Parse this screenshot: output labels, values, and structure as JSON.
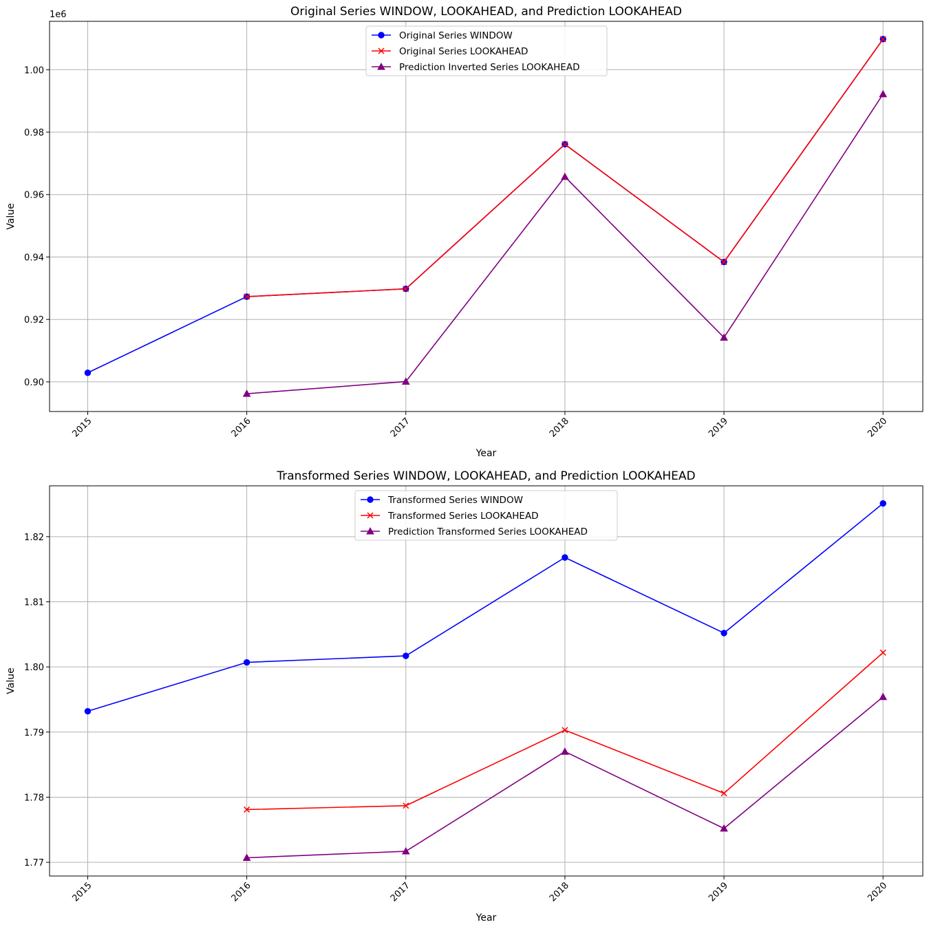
{
  "chart_data": [
    {
      "type": "line",
      "title": "Original Series WINDOW, LOOKAHEAD, and Prediction LOOKAHEAD",
      "xlabel": "Year",
      "ylabel": "Value",
      "offset_label": "1e6",
      "x_ticks": [
        "2015",
        "2016",
        "2017",
        "2018",
        "2019",
        "2020"
      ],
      "xlim": [
        2014.76,
        2020.25
      ],
      "ylim": [
        0.8905,
        1.0155
      ],
      "y_ticks": [
        0.9,
        0.92,
        0.94,
        0.96,
        0.98,
        1.0
      ],
      "y_tick_labels": [
        "0.90",
        "0.92",
        "0.94",
        "0.96",
        "0.98",
        "1.00"
      ],
      "grid": true,
      "legend_position": "upper-center",
      "series": [
        {
          "name": "Original Series WINDOW",
          "color": "#0000ff",
          "marker": "circle",
          "x": [
            2015,
            2016,
            2017,
            2018,
            2019,
            2020
          ],
          "values": [
            0.9029,
            0.9273,
            0.9298,
            0.9761,
            0.9384,
            1.0098
          ]
        },
        {
          "name": "Original Series LOOKAHEAD",
          "color": "#ff0000",
          "marker": "x",
          "x": [
            2016,
            2017,
            2018,
            2019,
            2020
          ],
          "values": [
            0.9273,
            0.9298,
            0.9761,
            0.9384,
            1.0098
          ]
        },
        {
          "name": "Prediction Inverted Series LOOKAHEAD",
          "color": "#800080",
          "marker": "triangle",
          "x": [
            2016,
            2017,
            2018,
            2019,
            2020
          ],
          "values": [
            0.8962,
            0.9001,
            0.9657,
            0.9142,
            0.9922
          ]
        }
      ]
    },
    {
      "type": "line",
      "title": "Transformed Series WINDOW, LOOKAHEAD, and Prediction LOOKAHEAD",
      "xlabel": "Year",
      "ylabel": "Value",
      "x_ticks": [
        "2015",
        "2016",
        "2017",
        "2018",
        "2019",
        "2020"
      ],
      "xlim": [
        2014.76,
        2020.25
      ],
      "ylim": [
        1.7679,
        1.8278
      ],
      "y_ticks": [
        1.77,
        1.78,
        1.79,
        1.8,
        1.81,
        1.82
      ],
      "y_tick_labels": [
        "1.77",
        "1.78",
        "1.79",
        "1.80",
        "1.81",
        "1.82"
      ],
      "grid": true,
      "legend_position": "upper-center",
      "series": [
        {
          "name": "Transformed Series WINDOW",
          "color": "#0000ff",
          "marker": "circle",
          "x": [
            2015,
            2016,
            2017,
            2018,
            2019,
            2020
          ],
          "values": [
            1.7932,
            1.8007,
            1.8017,
            1.8168,
            1.8052,
            1.8251
          ]
        },
        {
          "name": "Transformed Series LOOKAHEAD",
          "color": "#ff0000",
          "marker": "x",
          "x": [
            2016,
            2017,
            2018,
            2019,
            2020
          ],
          "values": [
            1.7781,
            1.7787,
            1.7903,
            1.7806,
            1.8022
          ]
        },
        {
          "name": "Prediction Transformed Series LOOKAHEAD",
          "color": "#800080",
          "marker": "triangle",
          "x": [
            2016,
            2017,
            2018,
            2019,
            2020
          ],
          "values": [
            1.7707,
            1.7717,
            1.787,
            1.7752,
            1.7954
          ]
        }
      ]
    }
  ]
}
